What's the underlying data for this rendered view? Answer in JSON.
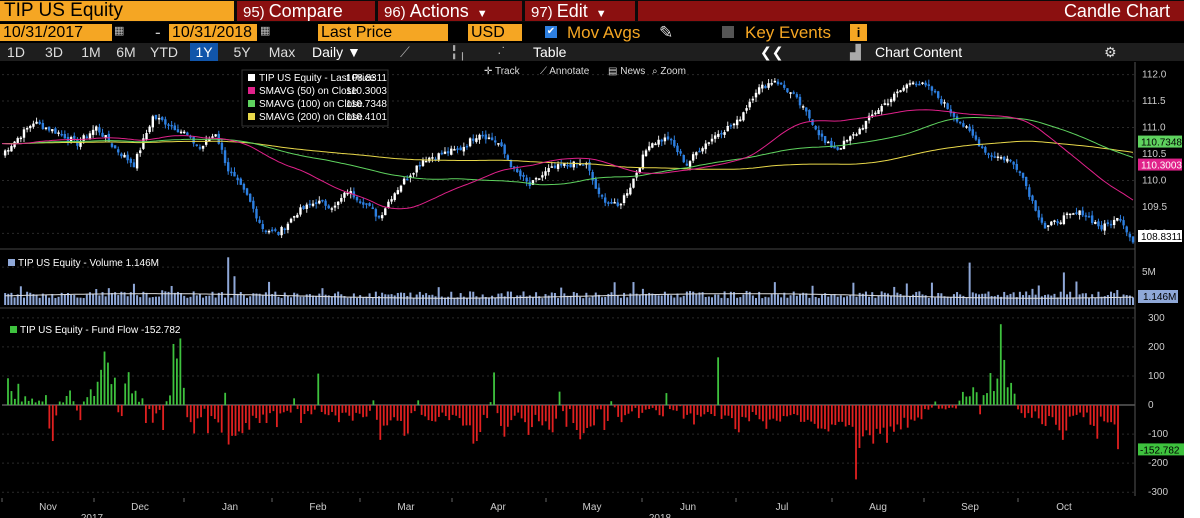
{
  "header": {
    "ticker": "TIP US Equity",
    "compare": {
      "num": "95)",
      "label": "Compare"
    },
    "actions": {
      "num": "96)",
      "label": "Actions"
    },
    "edit": {
      "num": "97)",
      "label": "Edit"
    },
    "chart_type": "Candle Chart"
  },
  "controls": {
    "start_date": "10/31/2017",
    "date_sep": "-",
    "end_date": "10/31/2018",
    "field": "Last Price",
    "currency": "USD",
    "mov_avgs_label": "Mov Avgs",
    "key_events_label": "Key Events",
    "ranges": [
      "1D",
      "3D",
      "1M",
      "6M",
      "YTD",
      "1Y",
      "5Y",
      "Max"
    ],
    "selected_range": "1Y",
    "frequency": "Daily",
    "table_label": "Table",
    "chart_content_label": "Chart Content",
    "tools": [
      "Track",
      "Annotate",
      "News",
      "Zoom"
    ]
  },
  "colors": {
    "accent": "#f5a623",
    "header_red": "#8b1010",
    "up": "#ffffff",
    "down": "#2d7fe0",
    "sma50": "#e0218a",
    "sma100": "#5fd35f",
    "sma200": "#e8d84a",
    "flow_pos": "#3ec23e",
    "flow_neg": "#e02020",
    "volume": "#8fa8d8"
  },
  "chart_data": [
    {
      "type": "candlestick",
      "x_labels": [
        "Nov",
        "Dec",
        "Jan",
        "Feb",
        "Mar",
        "Apr",
        "May",
        "Jun",
        "Jul",
        "Aug",
        "Sep",
        "Oct"
      ],
      "year_labels": [
        "2017",
        "2018"
      ],
      "ylim": [
        108.8,
        112.2
      ],
      "y_ticks": [
        109.0,
        109.5,
        110.0,
        110.5,
        111.0,
        111.5,
        112.0
      ],
      "last_price": 108.8311,
      "legend": [
        {
          "label": "TIP US Equity - Last Price",
          "value": "108.8311"
        },
        {
          "label": "SMAVG (50)  on Close",
          "value": "110.3003"
        },
        {
          "label": "SMAVG (100)  on Close",
          "value": "110.7348"
        },
        {
          "label": "SMAVG (200)  on Close",
          "value": "110.4101"
        }
      ],
      "close_anchors": [
        [
          0,
          110.5
        ],
        [
          5,
          110.8
        ],
        [
          10,
          111.1
        ],
        [
          18,
          110.9
        ],
        [
          24,
          110.7
        ],
        [
          30,
          111.0
        ],
        [
          36,
          110.6
        ],
        [
          42,
          110.3
        ],
        [
          48,
          111.2
        ],
        [
          52,
          111.1
        ],
        [
          58,
          110.9
        ],
        [
          63,
          110.6
        ],
        [
          68,
          110.9
        ],
        [
          72,
          110.2
        ],
        [
          78,
          109.7
        ],
        [
          83,
          109.1
        ],
        [
          88,
          109.0
        ],
        [
          94,
          109.4
        ],
        [
          100,
          109.6
        ],
        [
          106,
          109.5
        ],
        [
          110,
          109.8
        ],
        [
          115,
          109.6
        ],
        [
          120,
          109.3
        ],
        [
          124,
          109.7
        ],
        [
          128,
          110.0
        ],
        [
          134,
          110.4
        ],
        [
          140,
          110.5
        ],
        [
          146,
          110.6
        ],
        [
          152,
          110.9
        ],
        [
          158,
          110.7
        ],
        [
          163,
          110.2
        ],
        [
          168,
          109.9
        ],
        [
          174,
          110.2
        ],
        [
          180,
          110.3
        ],
        [
          186,
          110.3
        ],
        [
          190,
          109.7
        ],
        [
          196,
          109.5
        ],
        [
          200,
          109.9
        ],
        [
          206,
          110.7
        ],
        [
          212,
          110.8
        ],
        [
          218,
          110.3
        ],
        [
          222,
          110.6
        ],
        [
          228,
          110.9
        ],
        [
          234,
          111.1
        ],
        [
          240,
          111.7
        ],
        [
          246,
          111.9
        ],
        [
          252,
          111.6
        ],
        [
          258,
          111.1
        ],
        [
          262,
          110.7
        ],
        [
          266,
          110.6
        ],
        [
          272,
          110.9
        ],
        [
          278,
          111.3
        ],
        [
          284,
          111.6
        ],
        [
          290,
          111.9
        ],
        [
          296,
          111.7
        ],
        [
          302,
          111.3
        ],
        [
          308,
          110.9
        ],
        [
          314,
          110.5
        ],
        [
          320,
          110.4
        ],
        [
          324,
          110.2
        ],
        [
          328,
          109.6
        ],
        [
          332,
          109.1
        ],
        [
          338,
          109.3
        ],
        [
          344,
          109.4
        ],
        [
          350,
          109.1
        ],
        [
          356,
          109.3
        ],
        [
          360,
          108.83
        ]
      ]
    },
    {
      "type": "bar",
      "title": "TIP US Equity - Volume",
      "last_value_label": "1.146M",
      "y_tick_label": "5M",
      "ylim": [
        0,
        7
      ],
      "spikes": [
        [
          72,
          6.3
        ],
        [
          74,
          3.8
        ],
        [
          308,
          5.6
        ],
        [
          338,
          4.3
        ],
        [
          342,
          3.1
        ],
        [
          178,
          2.3
        ],
        [
          42,
          2.8
        ]
      ]
    },
    {
      "type": "bar",
      "title": "TIP US Equity - Fund Flow",
      "last_value": -152.782,
      "last_value_label": "-152.782",
      "ylim": [
        -320,
        320
      ],
      "y_ticks": [
        300,
        200,
        100,
        0,
        -100,
        -200,
        -300
      ],
      "y_tick_labels": [
        "300",
        "200",
        "100",
        "0",
        "-100",
        "-200",
        "-300"
      ],
      "values": [
        92,
        48,
        21,
        73,
        12,
        30,
        14,
        22,
        9,
        15,
        12,
        34,
        -81,
        -124,
        -36,
        12,
        9,
        31,
        50,
        13,
        -19,
        -52,
        12,
        27,
        54,
        31,
        80,
        121,
        184,
        146,
        72,
        94,
        -25,
        -38,
        74,
        113,
        40,
        49,
        11,
        23,
        -62,
        -14,
        -61,
        -29,
        -17,
        -86,
        13,
        33,
        210,
        160,
        229,
        59,
        -42,
        -59,
        -98,
        -46,
        -42,
        -13,
        -97,
        -38,
        -48,
        -60,
        -95,
        42,
        -136,
        -106,
        -106,
        -91,
        -97,
        -62,
        -85,
        -37,
        -45,
        -62,
        -33,
        -62,
        -28,
        -21,
        -76,
        -29,
        -25,
        -20,
        -26,
        23,
        -14,
        -62,
        -31,
        -21,
        -32,
        -16,
        108,
        -24,
        -32,
        -35,
        -24,
        -36,
        -59,
        -27,
        -26,
        -37,
        -54,
        -27,
        -30,
        -42,
        -40,
        -20,
        16,
        -51,
        -120,
        -71,
        -70,
        -53,
        -42,
        -54,
        -55,
        -106,
        -98,
        -28,
        -21,
        16,
        -34,
        -39,
        -52,
        -55,
        -57,
        -41,
        -26,
        -38,
        -52,
        -34,
        -37,
        -45,
        -71,
        -70,
        -70,
        -133,
        -124,
        -93,
        -34,
        -45,
        10,
        112,
        -28,
        -72,
        -109,
        -75,
        -52,
        -37,
        -26,
        -46,
        -59,
        -103,
        -76,
        -34,
        -56,
        -70,
        -56,
        -85,
        -94,
        -47,
        46,
        -21,
        -75,
        -14,
        -62,
        -86,
        -118,
        -97,
        -79,
        -74,
        -70,
        -15,
        -15,
        -86,
        -55,
        13,
        -8,
        -41,
        -59,
        -35,
        -30,
        -22,
        -10,
        -45,
        -27,
        -16,
        -14,
        -10,
        -18,
        -35,
        -39,
        41,
        -14,
        -18,
        -20,
        -4,
        -47,
        -34,
        -29,
        -67,
        -34,
        -40,
        -32,
        -24,
        -31,
        -38,
        164,
        -48,
        -36,
        -37,
        -45,
        -83,
        -94,
        -41,
        -43,
        -56,
        -24,
        -34,
        -49,
        -56,
        -82,
        -50,
        -47,
        -54,
        -57,
        -38,
        -39,
        -35,
        -31,
        -35,
        -58,
        -58,
        -51,
        -57,
        -65,
        -81,
        -81,
        -83,
        -91,
        -67,
        -69,
        -58,
        -58,
        -74,
        -69,
        -75,
        -256,
        -148,
        -108,
        -87,
        -104,
        -133,
        -82,
        -99,
        -78,
        -130,
        -74,
        -92,
        -67,
        -84,
        -44,
        -78,
        -50,
        -54,
        -43,
        -49,
        -14,
        -16,
        -9,
        12,
        -13,
        -12,
        -15,
        -10,
        -9,
        -12,
        15,
        45,
        29,
        30,
        61,
        44,
        -32,
        34,
        41,
        110,
        48,
        91,
        278,
        155,
        61,
        76,
        39,
        -15,
        -28,
        -44,
        -28,
        -44,
        -22,
        -46,
        -66,
        -72,
        -38,
        -42,
        -68,
        -87,
        -120,
        -88,
        -40,
        -37,
        -34,
        -26,
        -42,
        -26,
        -68,
        -72,
        -116,
        -40,
        -56,
        -60,
        -59,
        -67,
        -152
      ]
    }
  ]
}
